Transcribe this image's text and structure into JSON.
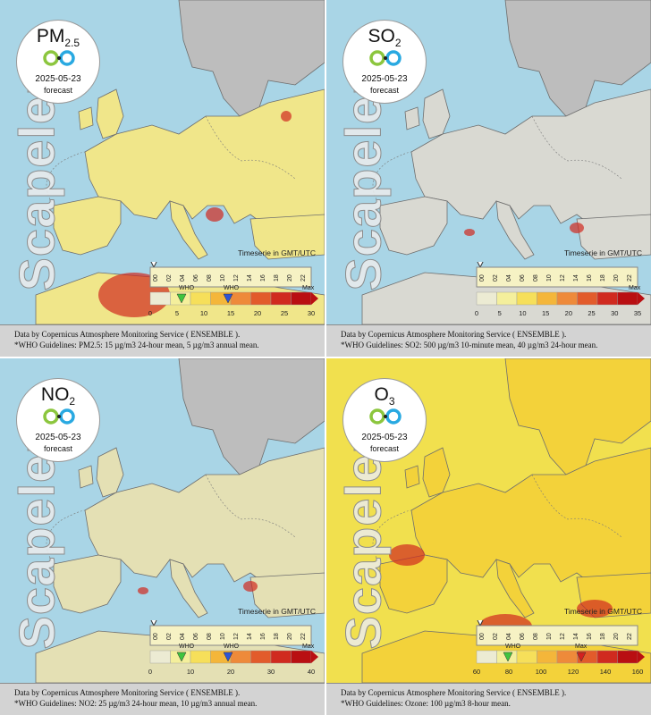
{
  "panels": [
    {
      "pollutant": "PM",
      "subscript": "2.5",
      "date": "2025-05-23",
      "kind": "forecast",
      "brand": "Scapeler",
      "timeseries": "Timeserie in GMT/UTC",
      "hours": [
        "00",
        "02",
        "04",
        "06",
        "08",
        "10",
        "12",
        "14",
        "16",
        "18",
        "20",
        "22"
      ],
      "who_label": "WHO",
      "max_label": "Max",
      "ticks": [
        "0",
        "5",
        "10",
        "15",
        "20",
        "25",
        "30"
      ],
      "source": "Data by Copernicus Atmosphere Monitoring Service ( ENSEMBLE ).",
      "guideline": "*WHO Guidelines: PM2.5: 15 µg/m3 24-hour mean, 5 µg/m3 annual mean.",
      "land": "#f0e68a",
      "sea": "#a9d5e6"
    },
    {
      "pollutant": "SO",
      "subscript": "2",
      "date": "2025-05-23",
      "kind": "forecast",
      "brand": "Scapeler",
      "timeseries": "Timeserie in GMT/UTC",
      "hours": [
        "00",
        "02",
        "04",
        "06",
        "08",
        "10",
        "12",
        "14",
        "16",
        "18",
        "20",
        "22"
      ],
      "who_label": "",
      "max_label": "Max",
      "ticks": [
        "0",
        "5",
        "10",
        "15",
        "20",
        "25",
        "30",
        "35"
      ],
      "source": "Data by Copernicus Atmosphere Monitoring Service ( ENSEMBLE ).",
      "guideline": "*WHO Guidelines: SO2: 500 µg/m3 10-minute mean, 40 µg/m3 24-hour mean.",
      "land": "#d9d9d2",
      "sea": "#a9d5e6"
    },
    {
      "pollutant": "NO",
      "subscript": "2",
      "date": "2025-05-23",
      "kind": "forecast",
      "brand": "Scapeler",
      "timeseries": "Timeserie in GMT/UTC",
      "hours": [
        "00",
        "02",
        "04",
        "06",
        "08",
        "10",
        "12",
        "14",
        "16",
        "18",
        "20",
        "22"
      ],
      "who_label": "WHO",
      "max_label": "Max",
      "ticks": [
        "0",
        "10",
        "20",
        "30",
        "40"
      ],
      "source": "Data by Copernicus Atmosphere Monitoring Service ( ENSEMBLE ).",
      "guideline": "*WHO Guidelines: NO2: 25 µg/m3 24-hour mean, 10 µg/m3 annual mean.",
      "land": "#e4e0b4",
      "sea": "#a9d5e6"
    },
    {
      "pollutant": "O",
      "subscript": "3",
      "date": "2025-05-23",
      "kind": "forecast",
      "brand": "Scapeler",
      "timeseries": "Timeserie in GMT/UTC",
      "hours": [
        "00",
        "02",
        "04",
        "06",
        "08",
        "10",
        "12",
        "14",
        "16",
        "18",
        "20",
        "22"
      ],
      "who_label": "WHO",
      "max_label": "Max",
      "ticks": [
        "60",
        "80",
        "100",
        "120",
        "140",
        "160"
      ],
      "source": "Data by Copernicus Atmosphere Monitoring Service ( ENSEMBLE ).",
      "guideline": "*WHO Guidelines: Ozone: 100 µg/m3 8-hour mean.",
      "land": "#f3d23a",
      "sea": "#f1e04e"
    }
  ],
  "colors": {
    "scale": [
      "#ecebd3",
      "#f4ef9c",
      "#f6df5a",
      "#f4b63a",
      "#ee8a3a",
      "#e25b2b",
      "#d02a1f",
      "#b90f12"
    ],
    "who_marker": "#3fc43f",
    "who_marker_2": "#2f55d4",
    "max_marker": "#d32020",
    "grey_land": "#bdbdbd"
  }
}
